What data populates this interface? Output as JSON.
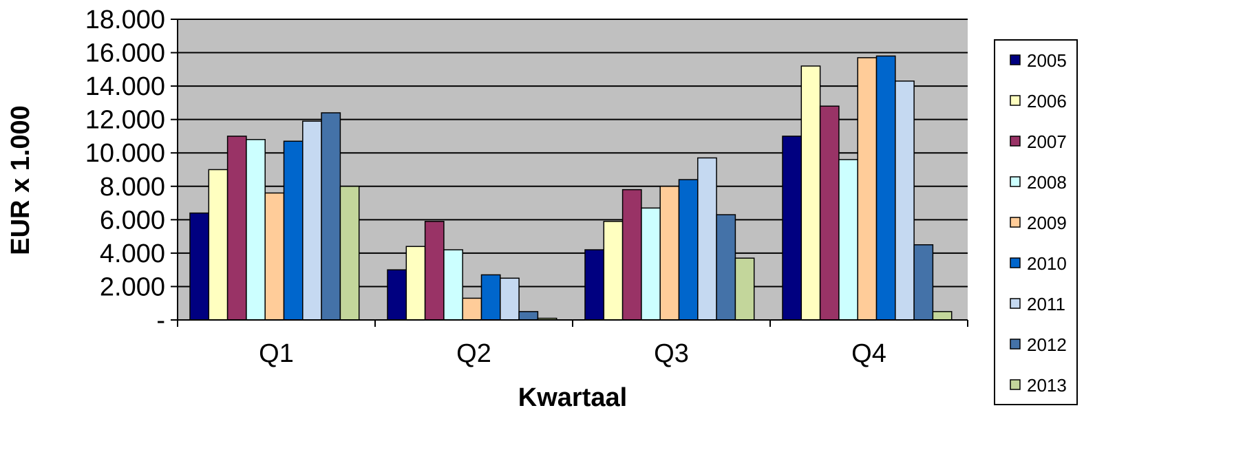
{
  "chart_data": {
    "type": "bar",
    "title": "",
    "xlabel": "Kwartaal",
    "ylabel": "EUR x 1.000",
    "ylim": [
      0,
      18000
    ],
    "yticks": [
      0,
      2000,
      4000,
      6000,
      8000,
      10000,
      12000,
      14000,
      16000,
      18000
    ],
    "ytick_labels": [
      "-",
      "2.000",
      "4.000",
      "6.000",
      "8.000",
      "10.000",
      "12.000",
      "14.000",
      "16.000",
      "18.000"
    ],
    "grid": true,
    "legend_position": "right",
    "plot_background": "#c0c0c0",
    "categories": [
      "Q1",
      "Q2",
      "Q3",
      "Q4"
    ],
    "series": [
      {
        "name": "2005",
        "color": "#000080",
        "values": [
          6400,
          3000,
          4200,
          11000
        ]
      },
      {
        "name": "2006",
        "color": "#ffffc0",
        "values": [
          9000,
          4400,
          5900,
          15200
        ]
      },
      {
        "name": "2007",
        "color": "#993366",
        "values": [
          11000,
          5900,
          7800,
          12800
        ]
      },
      {
        "name": "2008",
        "color": "#ccffff",
        "values": [
          10800,
          4200,
          6700,
          9600
        ]
      },
      {
        "name": "2009",
        "color": "#ffcc99",
        "values": [
          7600,
          1300,
          8000,
          15700
        ]
      },
      {
        "name": "2010",
        "color": "#0066cc",
        "values": [
          10700,
          2700,
          8400,
          15800
        ]
      },
      {
        "name": "2011",
        "color": "#c5d9f1",
        "values": [
          11900,
          2500,
          9700,
          14300
        ]
      },
      {
        "name": "2012",
        "color": "#4472a8",
        "values": [
          12400,
          500,
          6300,
          4500
        ]
      },
      {
        "name": "2013",
        "color": "#c3d69b",
        "values": [
          8000,
          100,
          3700,
          500
        ]
      }
    ]
  }
}
